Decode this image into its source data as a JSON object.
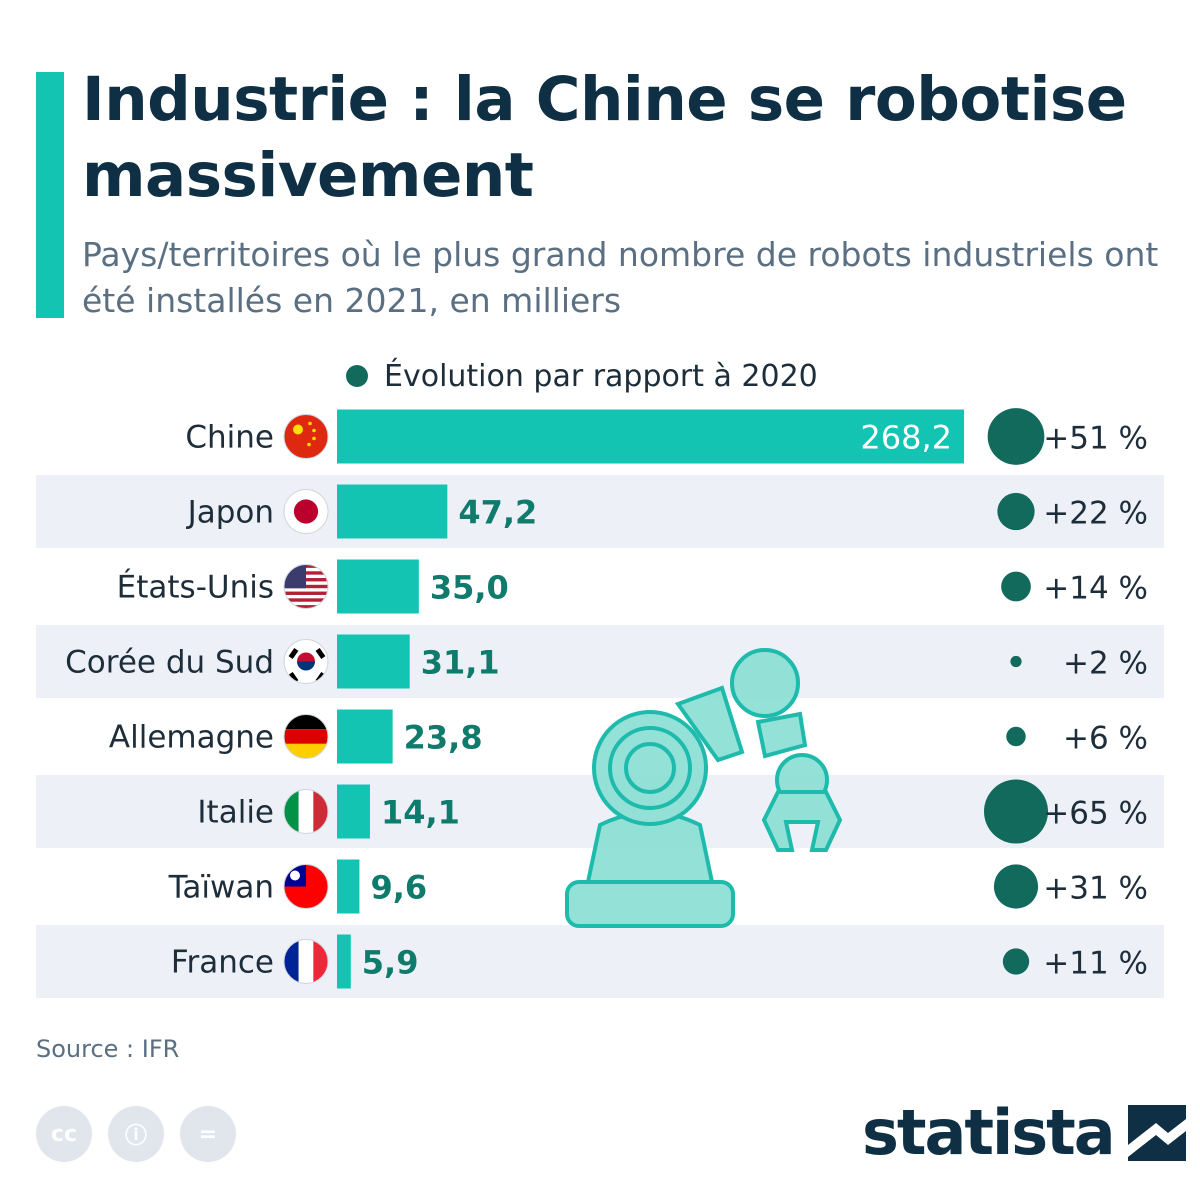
{
  "title": "Industrie : la Chine se robotise massivement",
  "subtitle": "Pays/territoires où le plus grand nombre de robots industriels ont été installés en 2021, en milliers",
  "legend_label": "Évolution par rapport à 2020",
  "source": "Source : IFR",
  "brand": "statista",
  "cc_icons": [
    "cc",
    "ⓘ",
    "="
  ],
  "colors": {
    "bar": "#13c4b3",
    "bubble": "#116a5c",
    "value_label": "#0f7b6c",
    "row_stripe": "#edf1f7",
    "title": "#0e2f44"
  },
  "chart_data": {
    "type": "bar",
    "orientation": "horizontal",
    "categories": [
      "Chine",
      "Japon",
      "États-Unis",
      "Corée du Sud",
      "Allemagne",
      "Italie",
      "Taïwan",
      "France"
    ],
    "flag_icons": [
      "china-flag-icon",
      "japan-flag-icon",
      "usa-flag-icon",
      "south-korea-flag-icon",
      "germany-flag-icon",
      "italy-flag-icon",
      "taiwan-flag-icon",
      "france-flag-icon"
    ],
    "values": [
      268.2,
      47.2,
      35.0,
      31.1,
      23.8,
      14.1,
      9.6,
      5.9
    ],
    "value_labels": [
      "268,2",
      "47,2",
      "35,0",
      "31,1",
      "23,8",
      "14,1",
      "9,6",
      "5,9"
    ],
    "change_pct": [
      51,
      22,
      14,
      2,
      6,
      65,
      31,
      11
    ],
    "change_labels": [
      "+51 %",
      "+22 %",
      "+14 %",
      "+2 %",
      "+6 %",
      "+65 %",
      "+31 %",
      "+11 %"
    ],
    "xlim": [
      0,
      268.2
    ],
    "grid": false
  }
}
